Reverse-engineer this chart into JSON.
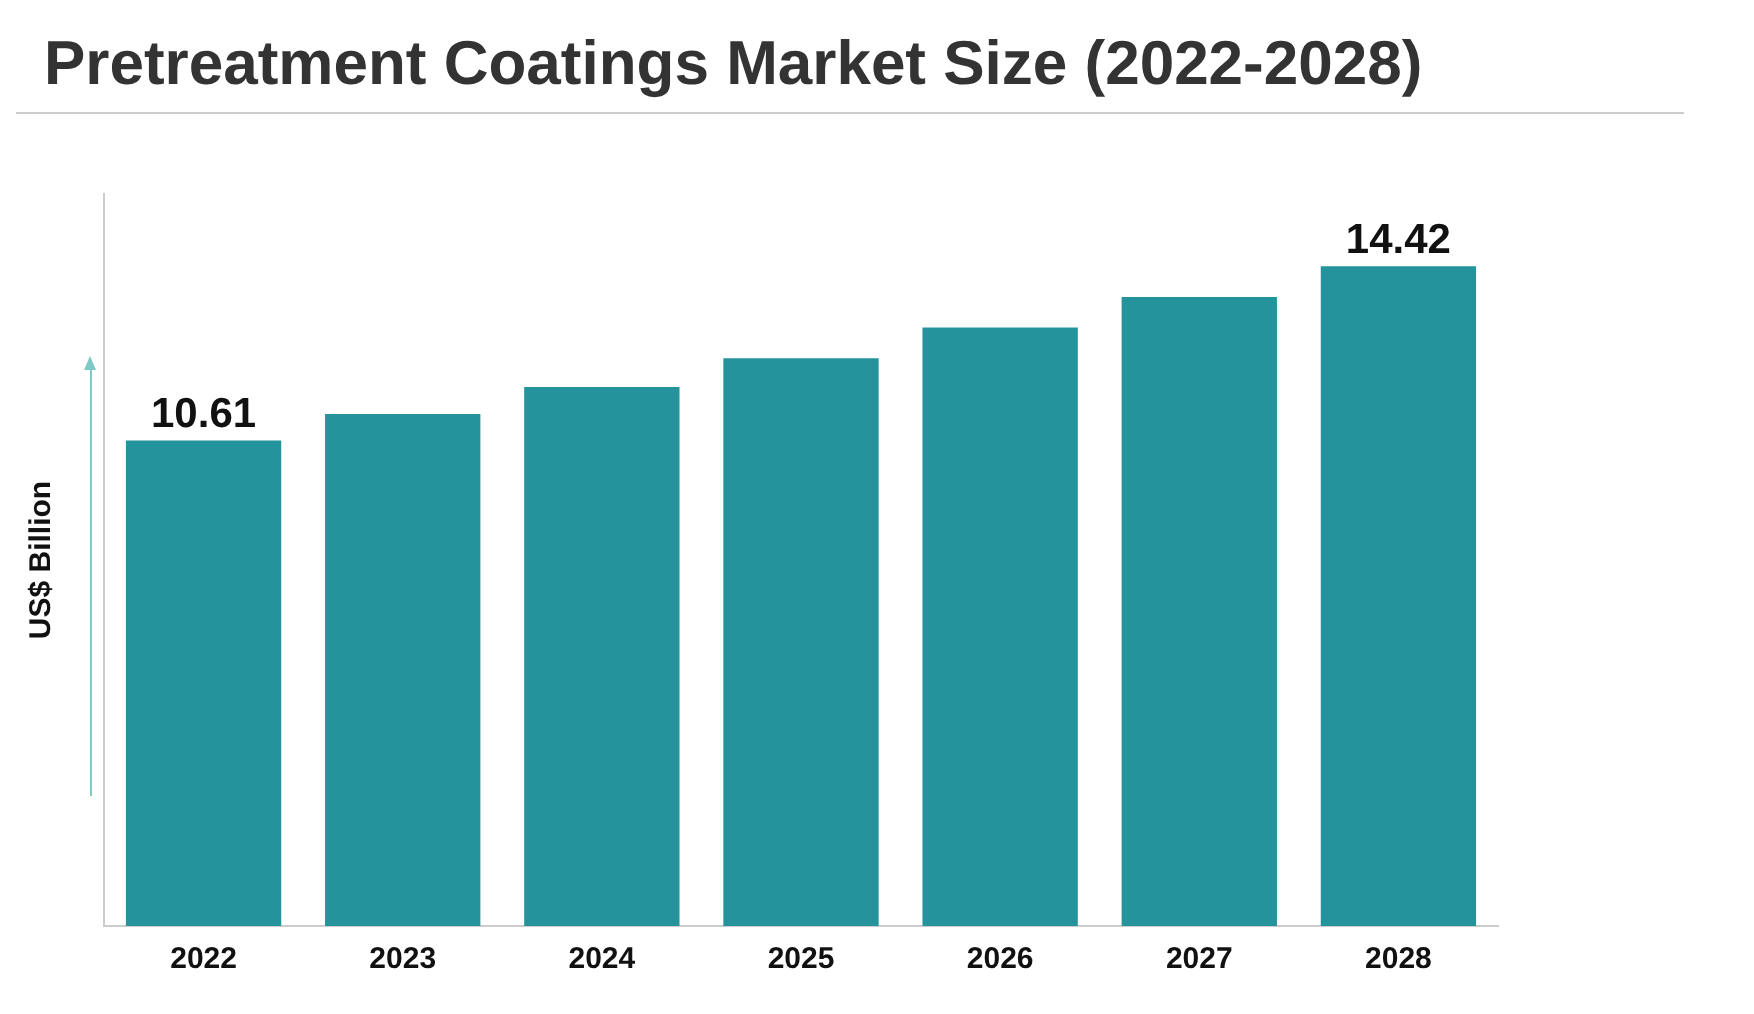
{
  "chart_data": {
    "type": "bar",
    "title": "Pretreatment Coatings Market Size (2022-2028)",
    "ylabel": "US$ Billion",
    "categories": [
      "2022",
      "2023",
      "2024",
      "2025",
      "2026",
      "2027",
      "2028"
    ],
    "values": [
      10.61,
      11.19,
      11.78,
      12.41,
      13.08,
      13.75,
      14.42
    ],
    "value_labels": [
      "10.61",
      null,
      null,
      null,
      null,
      null,
      "14.42"
    ],
    "color": "#24939c",
    "tick_labels": "x",
    "grid": false,
    "legend": false
  }
}
